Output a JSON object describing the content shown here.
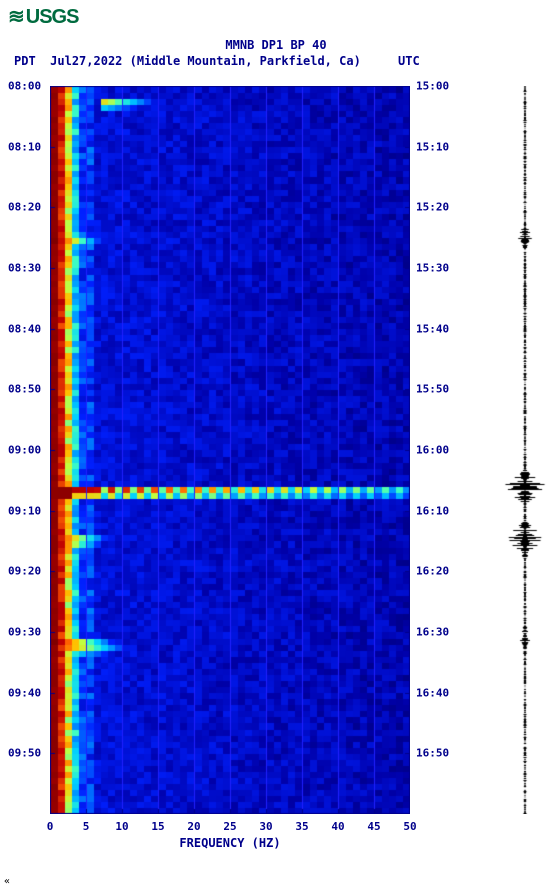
{
  "logo_text": "USGS",
  "title": "MMNB DP1 BP 40",
  "subtitle_pdt": "PDT",
  "subtitle_date": "Jul27,2022 (Middle Mountain, Parkfield, Ca)",
  "subtitle_utc": "UTC",
  "chart": {
    "type": "spectrogram",
    "x_axis": {
      "label": "FREQUENCY (HZ)",
      "min": 0,
      "max": 50,
      "ticks": [
        0,
        5,
        10,
        15,
        20,
        25,
        30,
        35,
        40,
        45,
        50
      ]
    },
    "y_axis_left": {
      "label_prefix": "PDT",
      "ticks": [
        "08:00",
        "08:10",
        "08:20",
        "08:30",
        "08:40",
        "08:50",
        "09:00",
        "09:10",
        "09:20",
        "09:30",
        "09:40",
        "09:50"
      ]
    },
    "y_axis_right": {
      "label_prefix": "UTC",
      "ticks": [
        "15:00",
        "15:10",
        "15:20",
        "15:30",
        "15:40",
        "15:50",
        "16:00",
        "16:10",
        "16:20",
        "16:30",
        "16:40",
        "16:50"
      ]
    },
    "n_time_rows": 120,
    "colors": {
      "background": "#ffffff",
      "text": "#00008b",
      "grid": "#2020ff",
      "axis": "#00008b",
      "palette": [
        "#00003c",
        "#0000a8",
        "#0020ff",
        "#0080ff",
        "#00d0ff",
        "#40ffc0",
        "#c0ff40",
        "#ffc000",
        "#ff6000",
        "#c00000",
        "#800000"
      ]
    },
    "events": [
      {
        "time_row": 2,
        "freq_start": 7,
        "freq_end": 14,
        "intensity": 0.55
      },
      {
        "time_row": 25,
        "freq_start": 0,
        "freq_end": 6,
        "intensity": 0.92
      },
      {
        "time_row": 66,
        "type": "broadband",
        "intensity": 0.95
      },
      {
        "time_row": 67,
        "type": "broadband",
        "intensity": 0.7
      },
      {
        "time_row": 74,
        "freq_start": 0,
        "freq_end": 7,
        "intensity": 0.88
      },
      {
        "time_row": 75,
        "freq_start": 0,
        "freq_end": 6,
        "intensity": 0.85
      },
      {
        "time_row": 91,
        "freq_start": 0,
        "freq_end": 8,
        "intensity": 0.9
      },
      {
        "time_row": 92,
        "freq_start": 0,
        "freq_end": 10,
        "intensity": 0.82
      }
    ],
    "low_freq_band": {
      "freq_max": 4,
      "base_intensity_inner": 0.98,
      "decay_to": 0.3
    },
    "waveform": {
      "color": "#000000",
      "baseline": 25,
      "spikes": [
        {
          "row": 25,
          "amp": 6
        },
        {
          "row": 66,
          "amp": 22
        },
        {
          "row": 74,
          "amp": 14
        },
        {
          "row": 75,
          "amp": 10
        },
        {
          "row": 91,
          "amp": 4
        }
      ],
      "noise_amp": 1.6
    }
  },
  "footer_char": "«"
}
